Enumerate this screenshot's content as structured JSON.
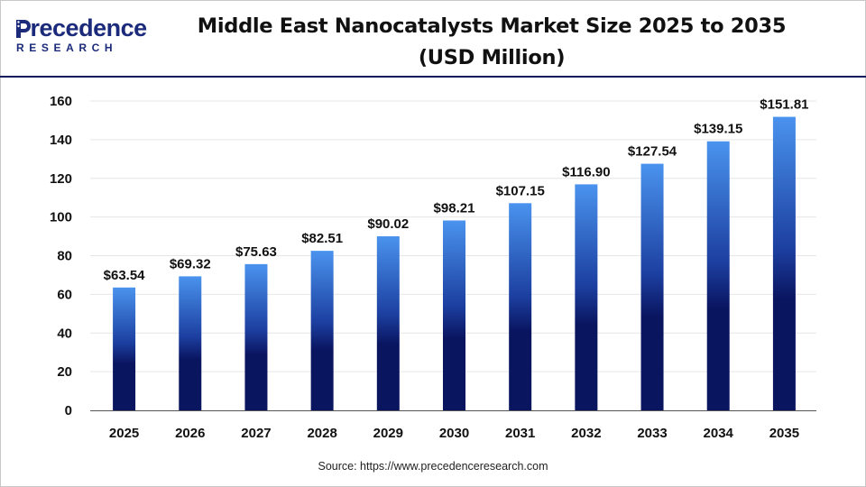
{
  "brand": {
    "name_main": "recedence",
    "name_initial": "P",
    "name_sub": "RESEARCH"
  },
  "header": {
    "title_line1": "Middle East Nanocatalysts Market Size 2025 to 2035",
    "title_line2": "(USD Million)"
  },
  "footer": {
    "source": "Source: https://www.precedenceresearch.com"
  },
  "colors": {
    "bar_top": "#4a93ee",
    "bar_bottom": "#0a1560",
    "brand": "#1b2a7a"
  },
  "chart_data": {
    "type": "bar",
    "title": "Middle East Nanocatalysts Market Size 2025 to 2035",
    "subtitle": "(USD Million)",
    "categories": [
      "2025",
      "2026",
      "2027",
      "2028",
      "2029",
      "2030",
      "2031",
      "2032",
      "2033",
      "2034",
      "2035"
    ],
    "values": [
      63.54,
      69.32,
      75.63,
      82.51,
      90.02,
      98.21,
      107.15,
      116.9,
      127.54,
      139.15,
      151.81
    ],
    "data_labels": [
      "$63.54",
      "$69.32",
      "$75.63",
      "$82.51",
      "$90.02",
      "$98.21",
      "$107.15",
      "$116.90",
      "$127.54",
      "$139.15",
      "$151.81"
    ],
    "ylim": [
      0,
      160
    ],
    "yticks": [
      0,
      20,
      40,
      60,
      80,
      100,
      120,
      140,
      160
    ],
    "xlabel": "",
    "ylabel": "",
    "grid": true,
    "legend": "none"
  }
}
